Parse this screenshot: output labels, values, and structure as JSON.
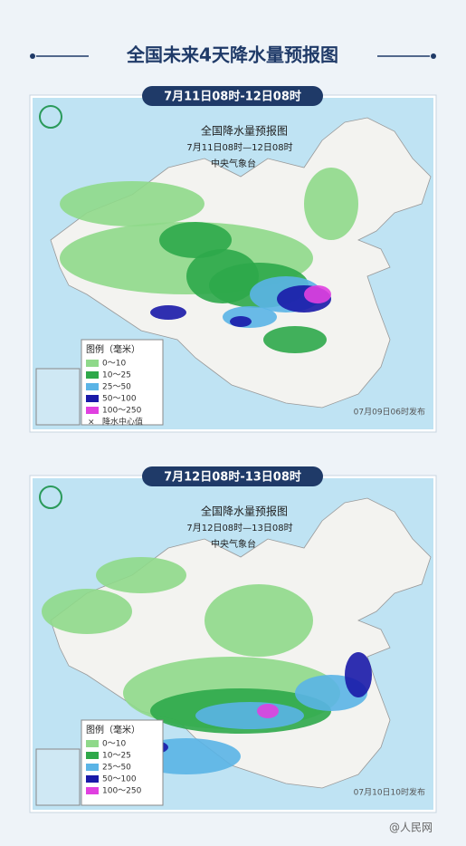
{
  "header": {
    "title": "全国未来4天降水量预报图"
  },
  "panels": [
    {
      "period": "7月11日08时-12日08时",
      "map_title": "全国降水量预报图",
      "map_period": "7月11日08时—12日08时",
      "issuer": "中央气象台",
      "legend_title": "图例（毫米）",
      "legend": [
        {
          "label": "0～10",
          "color": "#8fd98a"
        },
        {
          "label": "10～25",
          "color": "#2ea84a"
        },
        {
          "label": "25～50",
          "color": "#5ab4e6"
        },
        {
          "label": "50～100",
          "color": "#1a1aa8"
        },
        {
          "label": "100～250",
          "color": "#e040e0"
        }
      ],
      "center_note": "降水中心值",
      "release": "07月09日06时发布"
    },
    {
      "period": "7月12日08时-13日08时",
      "map_title": "全国降水量预报图",
      "map_period": "7月12日08时—13日08时",
      "issuer": "中央气象台",
      "legend_title": "图例（毫米）",
      "legend": [
        {
          "label": "0～10",
          "color": "#8fd98a"
        },
        {
          "label": "10～25",
          "color": "#2ea84a"
        },
        {
          "label": "25～50",
          "color": "#5ab4e6"
        },
        {
          "label": "50～100",
          "color": "#1a1aa8"
        },
        {
          "label": "100～250",
          "color": "#e040e0"
        }
      ],
      "release": "07月10日10时发布"
    }
  ],
  "footer": {
    "watermark": "@人民网"
  }
}
